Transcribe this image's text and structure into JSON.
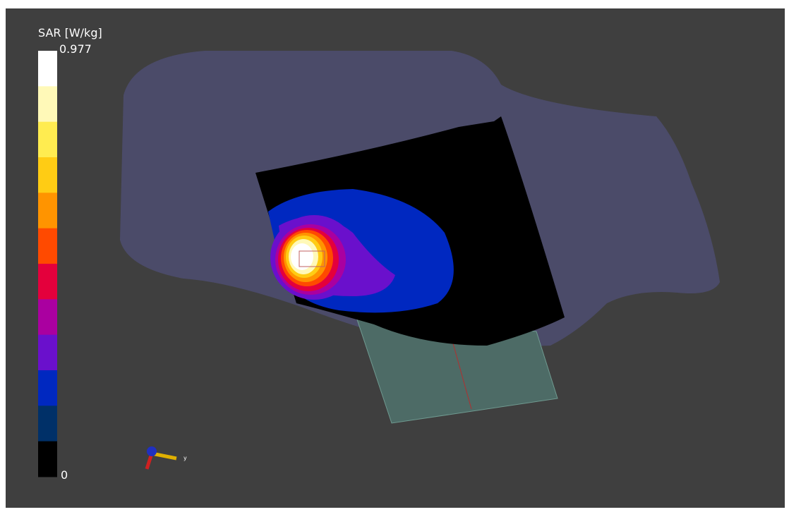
{
  "colorbar": {
    "title": "SAR [W/kg]",
    "max": "0.977",
    "min": "0",
    "colors": [
      "#ffffff",
      "#fff9b8",
      "#ffec50",
      "#ffcc14",
      "#ff9400",
      "#ff4a00",
      "#e4003c",
      "#aa00a0",
      "#6a10cc",
      "#0028c0",
      "#003068",
      "#000000"
    ]
  },
  "triad": {
    "label": "y"
  }
}
